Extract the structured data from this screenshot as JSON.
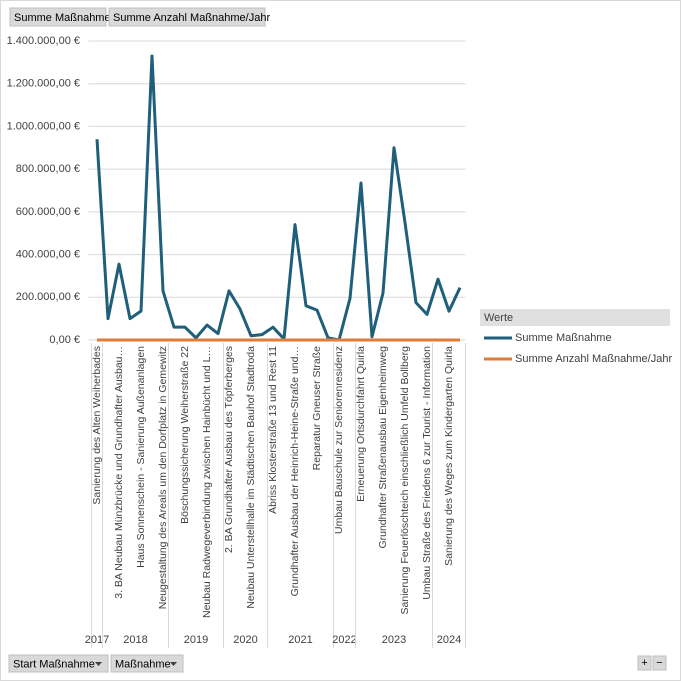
{
  "chart_data": {
    "type": "line",
    "field_buttons": [
      "Summe Maßnahme",
      "Summe Anzahl Maßnahme/Jahr"
    ],
    "axis_buttons": [
      "Start Maßnahme",
      "Maßnahme"
    ],
    "zoom_buttons": [
      "+",
      "−"
    ],
    "legend_title": "Werte",
    "categories": [
      "Sanierung des Alten Weiherbades",
      null,
      "3. BA Neubau Münzbrücke und Grundhafter Ausbau…",
      null,
      "Haus Sonnenschein - Sanierung Außenanlagen",
      null,
      "Neugestaltung des Areals um den Dorfplatz in Gemewitz",
      null,
      "Böschungssicherung Weiherstraße 22",
      null,
      "Neubau Radwegeverbindung zwischen Hainbücht und L…",
      null,
      "2. BA Grundhafter Ausbau des Töpferberges",
      null,
      "Neubau Unterstellhalle im Städtischen Bauhof Stadtroda",
      null,
      "Abriss Klosterstraße 13 und Rest 11",
      null,
      "Grundhafter Ausbau der Heinrich-Heine-Straße und…",
      null,
      "Reparatur Gneuser Straße",
      null,
      "Umbau Bauschule zur Seniorenresidenz",
      null,
      "Erneuerung Ortsdurchfahrt Quirla",
      null,
      "Grundhafter Straßenausbau Eigenheimweg",
      null,
      "Sanierung Feuerlöschteich einschließlich Umfeld Bollberg",
      null,
      "Umbau Straße des Friedens 6 zur Tourist - Information",
      null,
      "Sanierung des Weges zum Kindergarten Quirla",
      null
    ],
    "category_groups": [
      {
        "label": "2017",
        "size": 1
      },
      {
        "label": "2018",
        "size": 6
      },
      {
        "label": "2019",
        "size": 5
      },
      {
        "label": "2020",
        "size": 4
      },
      {
        "label": "2021",
        "size": 6
      },
      {
        "label": "2022",
        "size": 2
      },
      {
        "label": "2023",
        "size": 7
      },
      {
        "label": "2024",
        "size": 3
      }
    ],
    "series": [
      {
        "name": "Summe Maßnahme",
        "color": "#1f5f7a",
        "values": [
          940000,
          100000,
          355000,
          100000,
          135000,
          1330000,
          230000,
          60000,
          60000,
          10000,
          70000,
          30000,
          230000,
          145000,
          20000,
          25000,
          60000,
          5000,
          540000,
          160000,
          140000,
          10000,
          0,
          195000,
          735000,
          15000,
          220000,
          900000,
          550000,
          175000,
          120000,
          285000,
          135000,
          245000
        ]
      },
      {
        "name": "Summe Anzahl Maßnahme/Jahr",
        "color": "#e07b39",
        "values": [
          1,
          1,
          1,
          1,
          1,
          1,
          1,
          1,
          1,
          1,
          1,
          1,
          1,
          1,
          1,
          1,
          1,
          1,
          1,
          1,
          1,
          1,
          1,
          1,
          1,
          1,
          1,
          1,
          1,
          1,
          1,
          1,
          1,
          1
        ]
      }
    ],
    "ylim": [
      0,
      1400000
    ],
    "yticks": [
      {
        "value": 0,
        "label": "0,00 €"
      },
      {
        "value": 200000,
        "label": "200.000,00 €"
      },
      {
        "value": 400000,
        "label": "400.000,00 €"
      },
      {
        "value": 600000,
        "label": "600.000,00 €"
      },
      {
        "value": 800000,
        "label": "800.000,00 €"
      },
      {
        "value": 1000000,
        "label": "1.000.000,00 €"
      },
      {
        "value": 1200000,
        "label": "1.200.000,00 €"
      },
      {
        "value": 1400000,
        "label": "1.400.000,00 €"
      }
    ],
    "grid": true
  }
}
